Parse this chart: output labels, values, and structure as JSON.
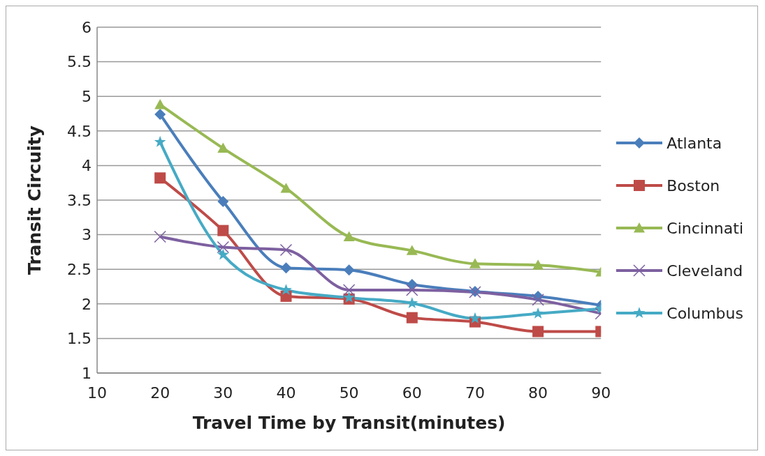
{
  "chart_data": {
    "type": "line",
    "xlabel": "Travel Time by Transit(minutes)",
    "ylabel": "Transit Circuity",
    "x": [
      20,
      30,
      40,
      50,
      60,
      70,
      80,
      90
    ],
    "xlim": [
      10,
      90
    ],
    "xticks": [
      10,
      20,
      30,
      40,
      50,
      60,
      70,
      80,
      90
    ],
    "ylim": [
      1,
      6
    ],
    "yticks": [
      1,
      1.5,
      2,
      2.5,
      3,
      3.5,
      4,
      4.5,
      5,
      5.5,
      6
    ],
    "grid": "y",
    "legend": "right",
    "line_style": "solid",
    "series": [
      {
        "name": "Atlanta",
        "color": "#4a7ebb",
        "marker": "diamond",
        "values": [
          4.74,
          3.48,
          2.52,
          2.49,
          2.28,
          2.18,
          2.11,
          1.98
        ]
      },
      {
        "name": "Boston",
        "color": "#be4b48",
        "marker": "square",
        "values": [
          3.82,
          3.06,
          2.11,
          2.07,
          1.8,
          1.74,
          1.6,
          1.6
        ]
      },
      {
        "name": "Cincinnati",
        "color": "#98b954",
        "marker": "triangle",
        "values": [
          4.88,
          4.25,
          3.67,
          2.97,
          2.77,
          2.58,
          2.56,
          2.46
        ]
      },
      {
        "name": "Cleveland",
        "color": "#7d60a0",
        "marker": "cross",
        "values": [
          2.97,
          2.82,
          2.78,
          2.2,
          2.2,
          2.17,
          2.06,
          1.86
        ]
      },
      {
        "name": "Columbus",
        "color": "#46aac5",
        "marker": "star",
        "values": [
          4.34,
          2.71,
          2.2,
          2.09,
          2.01,
          1.79,
          1.86,
          1.93
        ]
      }
    ]
  }
}
